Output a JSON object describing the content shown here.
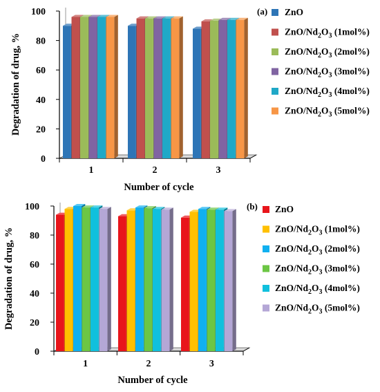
{
  "chart_data": [
    {
      "type": "bar",
      "panel_label": "(a)",
      "xlabel": "Number of cycle",
      "ylabel": "Degradation of drug, %",
      "ylim": [
        0,
        100
      ],
      "yticks": [
        0,
        20,
        40,
        60,
        80,
        100
      ],
      "categories": [
        "1",
        "2",
        "3"
      ],
      "legend_position": "right",
      "series": [
        {
          "name": "ZnO",
          "color": "#2E75B6",
          "values": [
            90,
            90,
            88
          ]
        },
        {
          "name": "ZnO/Nd2O3 (1mol%)",
          "color": "#C0504D",
          "values": [
            96,
            95,
            93
          ]
        },
        {
          "name": "ZnO/Nd2O3 (2mol%)",
          "color": "#9BBB59",
          "values": [
            96,
            95,
            93.5
          ]
        },
        {
          "name": "ZnO/Nd2O3 (3mol%)",
          "color": "#8064A2",
          "values": [
            96,
            95,
            94
          ]
        },
        {
          "name": "ZnO/Nd2O3 (4mol%)",
          "color": "#1FA8C7",
          "values": [
            96,
            95,
            94
          ]
        },
        {
          "name": "ZnO/Nd2O3 (5mol%)",
          "color": "#F79646",
          "values": [
            96,
            95,
            94
          ]
        }
      ]
    },
    {
      "type": "bar",
      "panel_label": "(b)",
      "xlabel": "Number of cycle",
      "ylabel": "Degradation of drug, %",
      "ylim": [
        0,
        100
      ],
      "yticks": [
        0,
        20,
        40,
        60,
        80,
        100
      ],
      "categories": [
        "1",
        "2",
        "3"
      ],
      "legend_position": "right",
      "series": [
        {
          "name": "ZnO",
          "color": "#E8151B",
          "values": [
            94,
            93,
            92
          ]
        },
        {
          "name": "ZnO/Nd2O3 (1mol%)",
          "color": "#FFC000",
          "values": [
            98,
            97,
            96
          ]
        },
        {
          "name": "ZnO/Nd2O3 (2mol%)",
          "color": "#10B0F0",
          "values": [
            100,
            99,
            98
          ]
        },
        {
          "name": "ZnO/Nd2O3 (3mol%)",
          "color": "#6CC644",
          "values": [
            99,
            98.5,
            97.5
          ]
        },
        {
          "name": "ZnO/Nd2O3 (4mol%)",
          "color": "#10C0DD",
          "values": [
            99,
            98,
            97.5
          ]
        },
        {
          "name": "ZnO/Nd2O3 (5mol%)",
          "color": "#B4A7D6",
          "values": [
            98,
            97.5,
            96.5
          ]
        }
      ]
    }
  ]
}
